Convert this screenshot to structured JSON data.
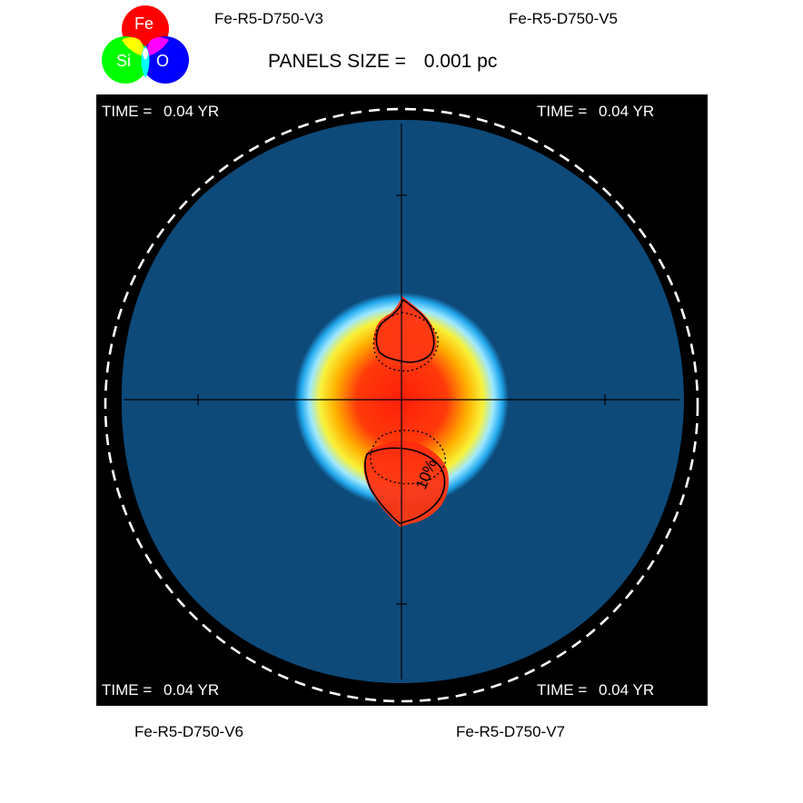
{
  "legend": {
    "elements": [
      {
        "symbol": "Fe",
        "color": "#ff0000"
      },
      {
        "symbol": "Si",
        "color": "#00ff00"
      },
      {
        "symbol": "O",
        "color": "#0000ff"
      }
    ]
  },
  "panels": {
    "top_left": "Fe-R5-D750-V3",
    "top_right": "Fe-R5-D750-V5",
    "bottom_left": "Fe-R5-D750-V6",
    "bottom_right": "Fe-R5-D750-V7"
  },
  "panel_size": {
    "label": "PANELS SIZE =",
    "value": "0.001 pc"
  },
  "time_labels": {
    "top_left": {
      "label": "TIME =",
      "value": "0.04 YR"
    },
    "top_right": {
      "label": "TIME =",
      "value": "0.04 YR"
    },
    "bottom_left": {
      "label": "TIME =",
      "value": "0.04 YR"
    },
    "bottom_right": {
      "label": "TIME =",
      "value": "0.04 YR"
    }
  },
  "contour_label": "10%",
  "colors": {
    "background_panel": "#000000",
    "ejecta_outer": "#0d4a7a",
    "core_red": "#ff2a10"
  }
}
